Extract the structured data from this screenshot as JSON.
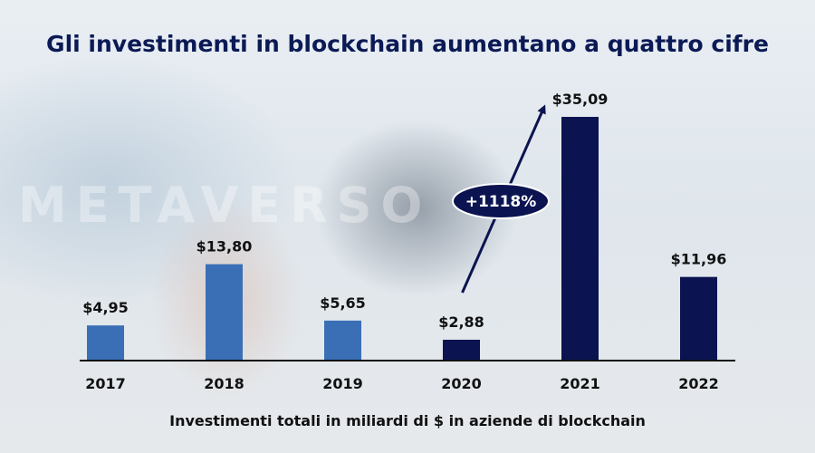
{
  "title": "Gli investimenti in blockchain aumentano a quattro cifre",
  "background_text": "METAVERSO",
  "chart_data": {
    "type": "bar",
    "title": "Gli investimenti in blockchain aumentano a quattro cifre",
    "subtitle": "Investimenti totali in miliardi di $ in aziende di blockchain",
    "xlabel": "",
    "ylabel": "",
    "categories": [
      "2017",
      "2018",
      "2019",
      "2020",
      "2021",
      "2022"
    ],
    "values": [
      4.95,
      13.8,
      5.65,
      2.88,
      35.09,
      11.96
    ],
    "value_labels": [
      "$4,95",
      "$13,80",
      "$5,65",
      "$2,88",
      "$35,09",
      "$11,96"
    ],
    "ylim": [
      0,
      35.09
    ],
    "grid": false,
    "legend": "none",
    "annotation": {
      "text": "+1118%",
      "from": "2020",
      "to": "2021"
    },
    "colors": {
      "bar_light": "#3a6fb6",
      "bar_dark": "#0b1450",
      "axis": "#111111",
      "annotation": "#0b1450"
    },
    "bar_color_keys": [
      "bar_light",
      "bar_light",
      "bar_light",
      "bar_dark",
      "bar_dark",
      "bar_dark"
    ]
  }
}
